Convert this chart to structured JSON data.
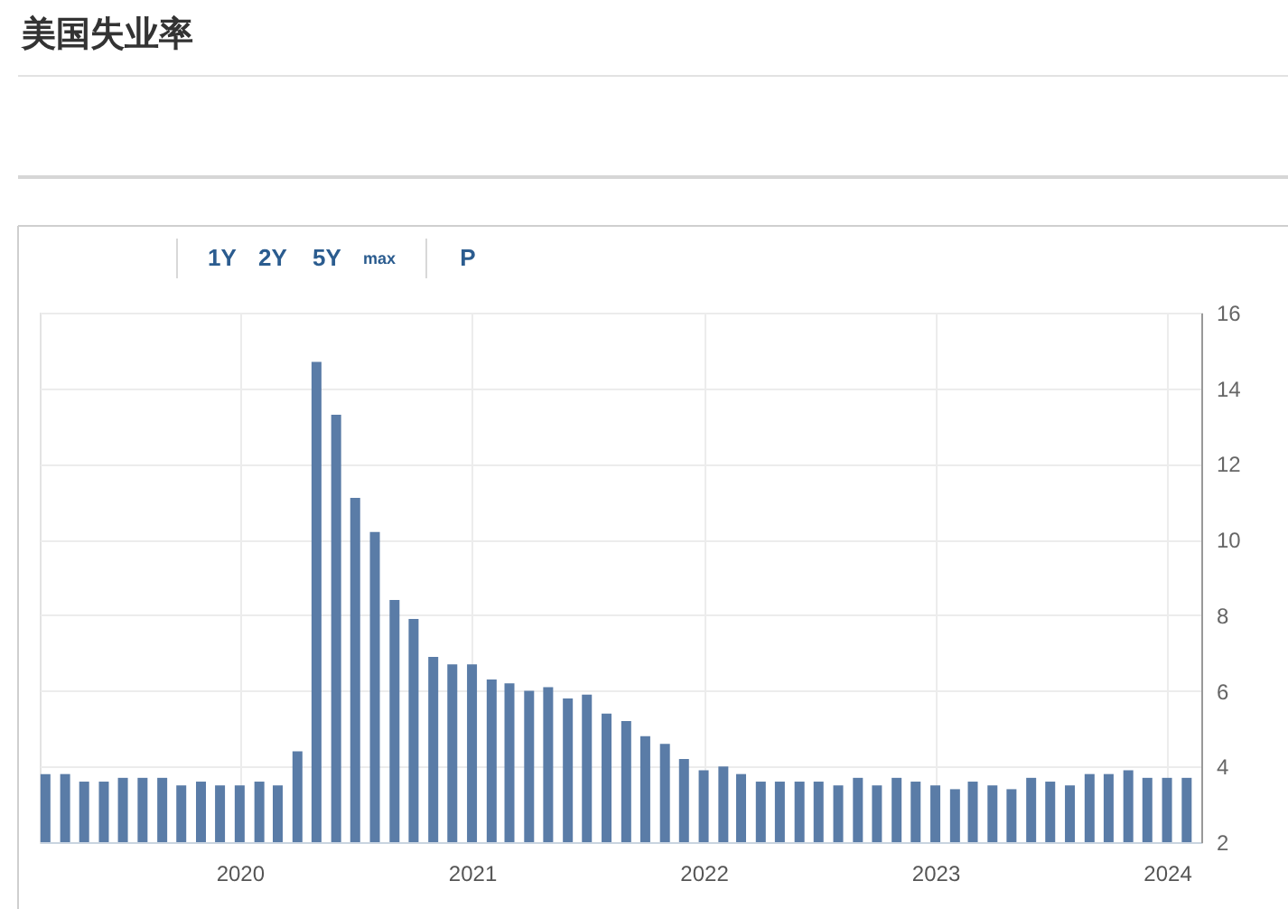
{
  "chart_data": {
    "type": "bar",
    "title": "美国失业率",
    "x": [
      "2019-03",
      "2019-04",
      "2019-05",
      "2019-06",
      "2019-07",
      "2019-08",
      "2019-09",
      "2019-10",
      "2019-11",
      "2019-12",
      "2020-01",
      "2020-02",
      "2020-03",
      "2020-04",
      "2020-05",
      "2020-06",
      "2020-07",
      "2020-08",
      "2020-09",
      "2020-10",
      "2020-11",
      "2020-12",
      "2021-01",
      "2021-02",
      "2021-03",
      "2021-04",
      "2021-05",
      "2021-06",
      "2021-07",
      "2021-08",
      "2021-09",
      "2021-10",
      "2021-11",
      "2021-12",
      "2022-01",
      "2022-02",
      "2022-03",
      "2022-04",
      "2022-05",
      "2022-06",
      "2022-07",
      "2022-08",
      "2022-09",
      "2022-10",
      "2022-11",
      "2022-12",
      "2023-01",
      "2023-02",
      "2023-03",
      "2023-04",
      "2023-05",
      "2023-06",
      "2023-07",
      "2023-08",
      "2023-09",
      "2023-10",
      "2023-11",
      "2023-12",
      "2024-01",
      "2024-02"
    ],
    "values": [
      3.8,
      3.8,
      3.6,
      3.6,
      3.7,
      3.7,
      3.7,
      3.5,
      3.6,
      3.5,
      3.5,
      3.6,
      3.5,
      4.4,
      14.7,
      13.3,
      11.1,
      10.2,
      8.4,
      7.9,
      6.9,
      6.7,
      6.7,
      6.3,
      6.2,
      6.0,
      6.1,
      5.8,
      5.9,
      5.4,
      5.2,
      4.8,
      4.6,
      4.2,
      3.9,
      4.0,
      3.8,
      3.6,
      3.6,
      3.6,
      3.6,
      3.5,
      3.7,
      3.5,
      3.7,
      3.6,
      3.5,
      3.4,
      3.6,
      3.5,
      3.4,
      3.7,
      3.6,
      3.5,
      3.8,
      3.8,
      3.9,
      3.7,
      3.7,
      3.7
    ],
    "color": "#5a7ca7",
    "xlim": [
      "2019-02-20",
      "2024-02-24"
    ],
    "xticks": [
      "2020",
      "2021",
      "2022",
      "2023",
      "2024"
    ],
    "ylim": [
      2,
      16
    ],
    "yticks": [
      2,
      4,
      6,
      8,
      10,
      12,
      14,
      16
    ],
    "grid": true,
    "annotations": [
      "1Y",
      "2Y",
      "5Y",
      "max",
      "P"
    ]
  }
}
